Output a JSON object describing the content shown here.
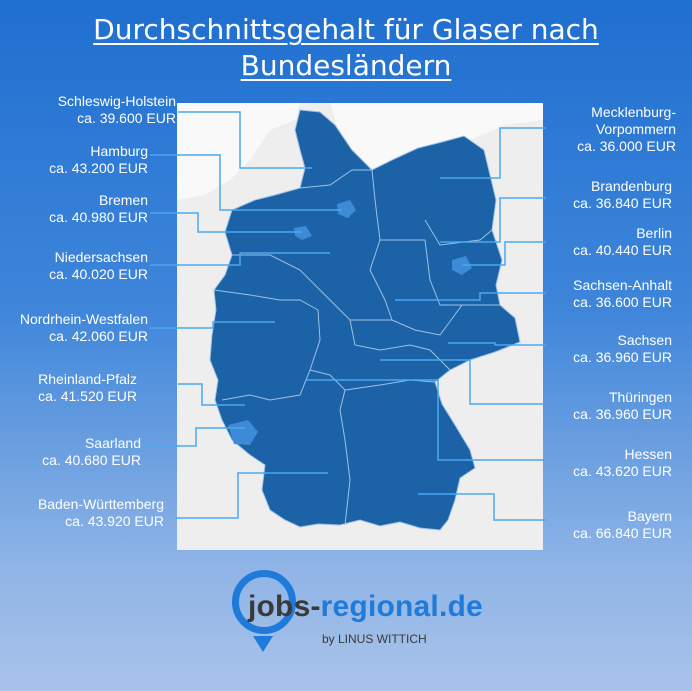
{
  "title_line1": "Durchschnittsgehalt für Glaser nach",
  "title_line2": "Bundesländern",
  "colors": {
    "map_fill": "#1b62a6",
    "highlight_fill": "#3c8ad8",
    "border": "#9ec1e6",
    "background_top": "#1f6fd0",
    "background_bottom": "#a8c3ea",
    "leader_line": "#4aa8f0"
  },
  "states": [
    {
      "name": "Schleswig-Holstein",
      "salary": "ca. 39.600 EUR"
    },
    {
      "name": "Hamburg",
      "salary": "ca. 43.200 EUR"
    },
    {
      "name": "Bremen",
      "salary": "ca. 40.980 EUR"
    },
    {
      "name": "Niedersachsen",
      "salary": "ca. 40.020 EUR"
    },
    {
      "name": "Nordrhein-Westfalen",
      "salary": "ca. 42.060 EUR"
    },
    {
      "name": "Rheinland-Pfalz",
      "salary": "ca. 41.520 EUR"
    },
    {
      "name": "Saarland",
      "salary": "ca. 40.680 EUR"
    },
    {
      "name": "Baden-Württemberg",
      "salary": "ca. 43.920 EUR"
    },
    {
      "name_line1": "Mecklenburg-",
      "name_line2": "Vorpommern",
      "salary": "ca. 36.000 EUR"
    },
    {
      "name": "Brandenburg",
      "salary": "ca. 36.840 EUR"
    },
    {
      "name": "Berlin",
      "salary": "ca. 40.440 EUR"
    },
    {
      "name": "Sachsen-Anhalt",
      "salary": "ca. 36.600 EUR"
    },
    {
      "name": "Sachsen",
      "salary": "ca. 36.960 EUR"
    },
    {
      "name": "Thüringen",
      "salary": "ca. 36.960 EUR"
    },
    {
      "name": "Hessen",
      "salary": "ca. 43.620 EUR"
    },
    {
      "name": "Bayern",
      "salary": "ca. 66.840 EUR"
    }
  ],
  "logo": {
    "prefix": "jobs-",
    "main": "regional.de",
    "byline": "by LINUS WITTICH"
  }
}
